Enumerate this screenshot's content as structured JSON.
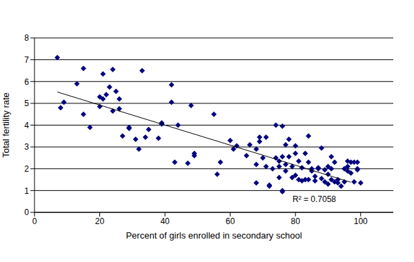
{
  "chart_data": {
    "type": "scatter",
    "x_label": "Percent of girls enrolled in secondary school",
    "y_label": "Total fertility rate",
    "annotations": [
      "R² = 0.7058"
    ],
    "color": "#00007f",
    "marker": "diamond",
    "grid": true,
    "xlim": [
      0,
      110
    ],
    "xticks": [
      0,
      20,
      40,
      60,
      80,
      100
    ],
    "ylim": [
      0,
      8
    ],
    "yticks": [
      0,
      1,
      2,
      3,
      4,
      5,
      6,
      7,
      8
    ],
    "x": [
      7,
      8,
      9,
      13,
      15,
      15,
      17,
      20,
      20,
      21,
      21,
      22,
      23,
      24,
      24,
      25,
      26,
      26,
      27,
      29,
      29,
      31,
      32,
      33,
      34,
      35,
      38,
      39,
      39,
      42,
      42,
      43,
      44,
      47,
      48,
      49,
      49,
      55,
      56,
      57,
      60,
      61,
      62,
      65,
      66,
      68,
      68,
      68,
      69,
      69,
      70,
      71,
      71,
      72,
      72,
      73,
      74,
      74,
      75,
      75,
      75,
      76,
      76,
      76,
      76,
      77,
      77,
      77,
      78,
      78,
      79,
      79,
      80,
      80,
      80,
      81,
      81,
      82,
      82,
      83,
      83,
      84,
      84,
      84,
      85,
      85,
      86,
      86,
      87,
      87,
      88,
      88,
      89,
      89,
      90,
      90,
      90,
      91,
      91,
      91,
      92,
      92,
      93,
      93,
      94,
      95,
      95,
      96,
      96,
      96,
      97,
      97,
      98,
      98,
      99,
      99,
      99,
      100
    ],
    "values": [
      7.1,
      4.8,
      5.05,
      5.9,
      6.6,
      4.5,
      3.9,
      4.85,
      5.3,
      6.35,
      5.2,
      5.4,
      5.75,
      6.55,
      4.65,
      5.55,
      5.2,
      4.75,
      3.5,
      3.9,
      3.85,
      3.35,
      2.9,
      6.5,
      3.45,
      3.8,
      3.4,
      4.05,
      4.1,
      5.05,
      5.85,
      2.3,
      4.0,
      2.25,
      4.9,
      2.7,
      2.6,
      4.5,
      1.75,
      2.3,
      3.3,
      2.9,
      3.05,
      2.6,
      3.1,
      1.35,
      2.9,
      2.2,
      3.45,
      3.25,
      2.5,
      2.1,
      3.45,
      1.25,
      1.2,
      2.0,
      4.0,
      2.5,
      2.1,
      2.35,
      1.6,
      3.95,
      2.55,
      1.0,
      0.95,
      3.1,
      2.2,
      1.9,
      2.55,
      3.35,
      2.1,
      1.6,
      3.05,
      2.7,
      1.7,
      2.35,
      1.5,
      1.45,
      2.05,
      1.5,
      2.7,
      3.5,
      2.3,
      1.5,
      1.9,
      2.0,
      1.65,
      1.45,
      2.05,
      2.0,
      2.95,
      1.55,
      1.95,
      1.4,
      2.1,
      1.75,
      1.3,
      2.55,
      1.5,
      2.0,
      1.4,
      2.3,
      1.5,
      1.35,
      1.2,
      2.0,
      1.4,
      2.35,
      2.1,
      1.9,
      1.8,
      2.3,
      1.4,
      2.3,
      1.95,
      2.0,
      2.3,
      1.35
    ],
    "trendline": {
      "x": [
        7,
        97
      ],
      "values": [
        5.52,
        1.38
      ],
      "color": "#000000",
      "line_style": "solid"
    }
  }
}
